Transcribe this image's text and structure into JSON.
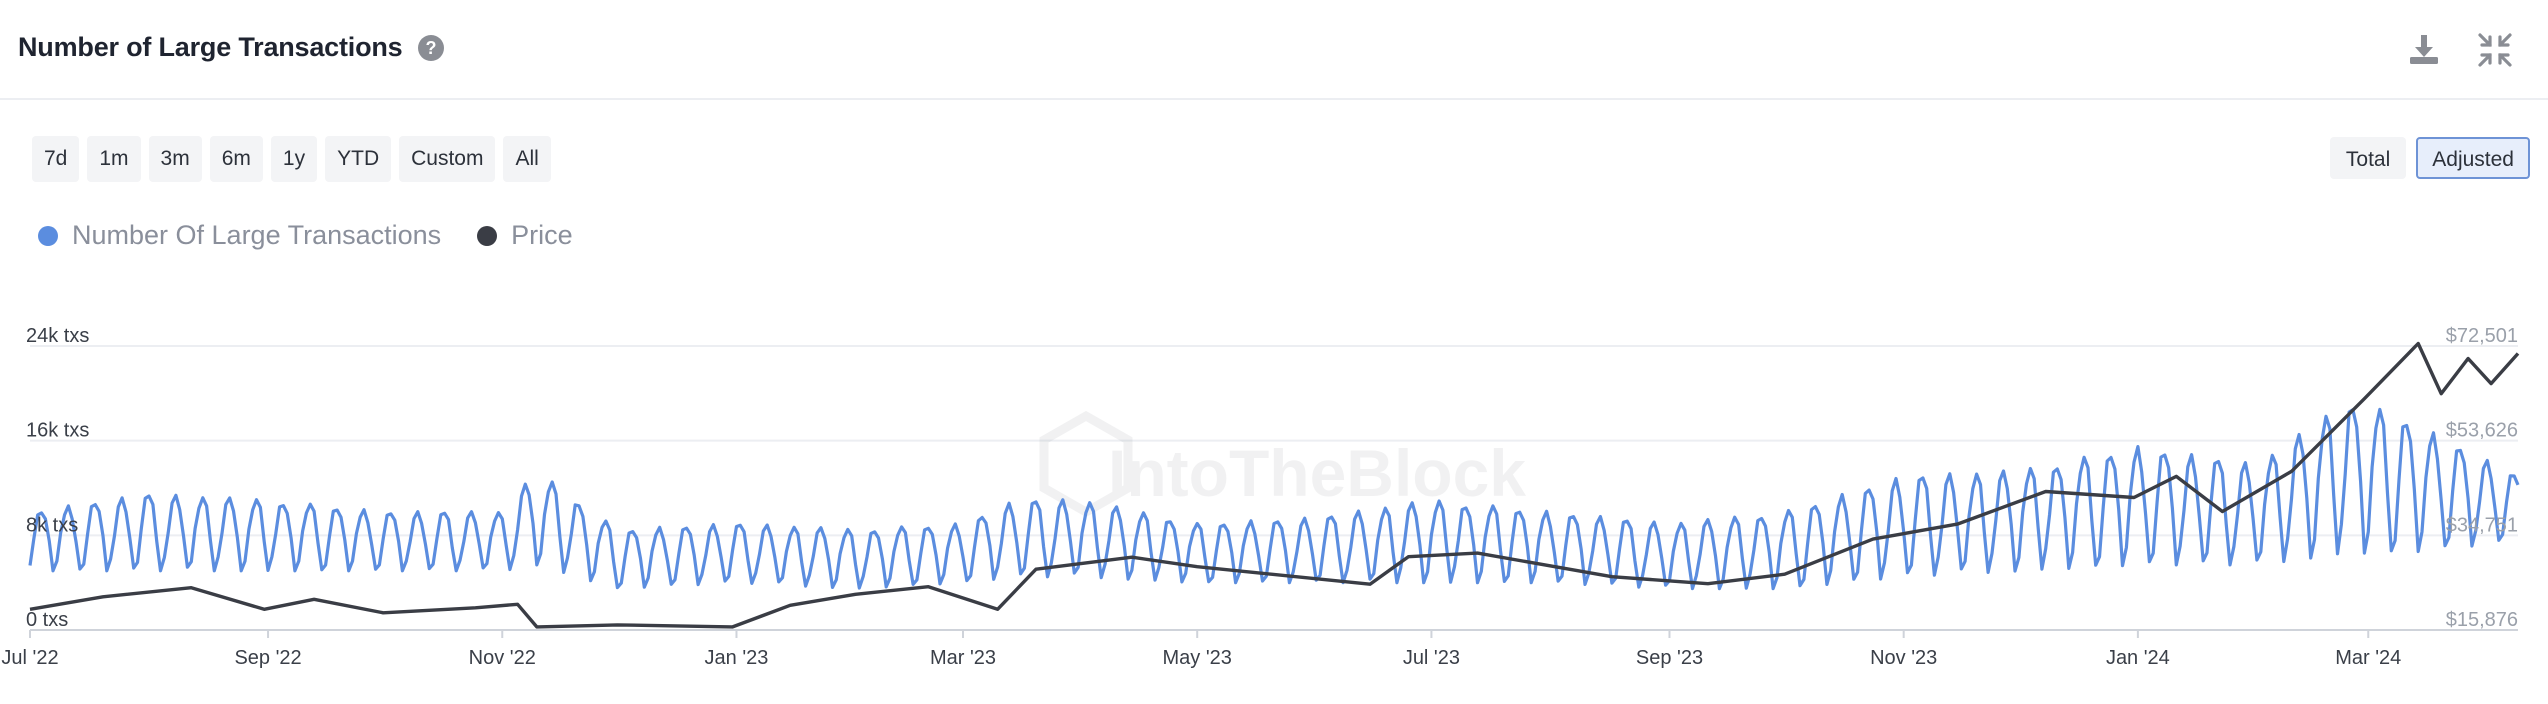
{
  "header": {
    "title": "Number of Large Transactions",
    "help_icon": "question-circle-icon",
    "download_icon": "download-icon",
    "collapse_icon": "collapse-arrows-icon"
  },
  "range_buttons": [
    "7d",
    "1m",
    "3m",
    "6m",
    "1y",
    "YTD",
    "Custom",
    "All"
  ],
  "mode_buttons": [
    {
      "label": "Total",
      "active": false
    },
    {
      "label": "Adjusted",
      "active": true
    }
  ],
  "legend": [
    {
      "label": "Number Of Large Transactions",
      "color": "#5b8ddf"
    },
    {
      "label": "Price",
      "color": "#3a3d45"
    }
  ],
  "watermark": "IntoTheBlock",
  "colors": {
    "tx": "#5b8ddf",
    "price": "#3a3d45",
    "grid": "#eceef2",
    "axis_text": "#9aa0aa"
  },
  "chart_data": {
    "type": "line",
    "x_range": [
      "2022-07-01",
      "2024-04-09"
    ],
    "x_ticks": [
      {
        "date": "2022-07-01",
        "label": "Jul '22"
      },
      {
        "date": "2022-09-01",
        "label": "Sep '22"
      },
      {
        "date": "2022-11-01",
        "label": "Nov '22"
      },
      {
        "date": "2023-01-01",
        "label": "Jan '23"
      },
      {
        "date": "2023-03-01",
        "label": "Mar '23"
      },
      {
        "date": "2023-05-01",
        "label": "May '23"
      },
      {
        "date": "2023-07-01",
        "label": "Jul '23"
      },
      {
        "date": "2023-09-01",
        "label": "Sep '23"
      },
      {
        "date": "2023-11-01",
        "label": "Nov '23"
      },
      {
        "date": "2024-01-01",
        "label": "Jan '24"
      },
      {
        "date": "2024-03-01",
        "label": "Mar '24"
      }
    ],
    "y_left": {
      "min": 0,
      "max": 24000,
      "ticks": [
        {
          "value": 0,
          "label": "0 txs"
        },
        {
          "value": 8000,
          "label": "8k txs"
        },
        {
          "value": 16000,
          "label": "16k txs"
        },
        {
          "value": 24000,
          "label": "24k txs"
        }
      ]
    },
    "y_right": {
      "min": 15876,
      "max": 72501,
      "ticks": [
        {
          "value": 15876,
          "label": "$15,876"
        },
        {
          "value": 34751,
          "label": "$34,751"
        },
        {
          "value": 53626,
          "label": "$53,626"
        },
        {
          "value": 72501,
          "label": "$72,501"
        }
      ]
    },
    "grid": true,
    "series": [
      {
        "name": "Number Of Large Transactions",
        "axis": "left",
        "color": "#5b8ddf",
        "weekly": [
          {
            "date": "2022-07-01",
            "high": 10000,
            "low": 5000
          },
          {
            "date": "2022-08-01",
            "high": 11500,
            "low": 5000
          },
          {
            "date": "2022-09-01",
            "high": 11000,
            "low": 5000
          },
          {
            "date": "2022-10-01",
            "high": 10000,
            "low": 5000
          },
          {
            "date": "2022-11-01",
            "high": 10000,
            "low": 5000
          },
          {
            "date": "2022-11-10",
            "high": 13500,
            "low": 5500
          },
          {
            "date": "2022-12-01",
            "high": 8500,
            "low": 3500
          },
          {
            "date": "2023-01-01",
            "high": 9000,
            "low": 4000
          },
          {
            "date": "2023-02-01",
            "high": 8500,
            "low": 3500
          },
          {
            "date": "2023-03-01",
            "high": 9000,
            "low": 4000
          },
          {
            "date": "2023-03-15",
            "high": 11000,
            "low": 4500
          },
          {
            "date": "2023-04-01",
            "high": 11000,
            "low": 4500
          },
          {
            "date": "2023-05-01",
            "high": 9000,
            "low": 4000
          },
          {
            "date": "2023-06-01",
            "high": 9500,
            "low": 4000
          },
          {
            "date": "2023-07-01",
            "high": 11000,
            "low": 4000
          },
          {
            "date": "2023-08-01",
            "high": 10000,
            "low": 4000
          },
          {
            "date": "2023-09-01",
            "high": 9000,
            "low": 3500
          },
          {
            "date": "2023-10-01",
            "high": 10000,
            "low": 3500
          },
          {
            "date": "2023-11-01",
            "high": 13000,
            "low": 4500
          },
          {
            "date": "2023-12-01",
            "high": 13500,
            "low": 5000
          },
          {
            "date": "2024-01-01",
            "high": 15500,
            "low": 5500
          },
          {
            "date": "2024-02-01",
            "high": 14000,
            "low": 5500
          },
          {
            "date": "2024-02-25",
            "high": 19500,
            "low": 6500
          },
          {
            "date": "2024-03-10",
            "high": 18000,
            "low": 6500
          },
          {
            "date": "2024-04-09",
            "high": 13000,
            "low": 7500
          }
        ]
      },
      {
        "name": "Price",
        "axis": "right",
        "color": "#3a3d45",
        "points": [
          {
            "date": "2022-07-01",
            "value": 20000
          },
          {
            "date": "2022-07-20",
            "value": 22500
          },
          {
            "date": "2022-08-12",
            "value": 24300
          },
          {
            "date": "2022-08-31",
            "value": 20000
          },
          {
            "date": "2022-09-13",
            "value": 22000
          },
          {
            "date": "2022-10-01",
            "value": 19300
          },
          {
            "date": "2022-10-25",
            "value": 20300
          },
          {
            "date": "2022-11-05",
            "value": 21000
          },
          {
            "date": "2022-11-10",
            "value": 16500
          },
          {
            "date": "2022-12-01",
            "value": 16900
          },
          {
            "date": "2022-12-31",
            "value": 16500
          },
          {
            "date": "2023-01-15",
            "value": 20800
          },
          {
            "date": "2023-02-01",
            "value": 23000
          },
          {
            "date": "2023-02-20",
            "value": 24500
          },
          {
            "date": "2023-03-10",
            "value": 20000
          },
          {
            "date": "2023-03-20",
            "value": 28000
          },
          {
            "date": "2023-04-14",
            "value": 30400
          },
          {
            "date": "2023-05-01",
            "value": 28500
          },
          {
            "date": "2023-06-15",
            "value": 25000
          },
          {
            "date": "2023-06-25",
            "value": 30500
          },
          {
            "date": "2023-07-13",
            "value": 31200
          },
          {
            "date": "2023-08-17",
            "value": 26500
          },
          {
            "date": "2023-09-11",
            "value": 25100
          },
          {
            "date": "2023-10-01",
            "value": 27000
          },
          {
            "date": "2023-10-24",
            "value": 34000
          },
          {
            "date": "2023-11-15",
            "value": 37000
          },
          {
            "date": "2023-12-08",
            "value": 43500
          },
          {
            "date": "2023-12-31",
            "value": 42300
          },
          {
            "date": "2024-01-11",
            "value": 46500
          },
          {
            "date": "2024-01-23",
            "value": 39500
          },
          {
            "date": "2024-02-10",
            "value": 47500
          },
          {
            "date": "2024-02-29",
            "value": 62000
          },
          {
            "date": "2024-03-14",
            "value": 73000
          },
          {
            "date": "2024-03-20",
            "value": 63000
          },
          {
            "date": "2024-03-27",
            "value": 70000
          },
          {
            "date": "2024-04-02",
            "value": 65000
          },
          {
            "date": "2024-04-09",
            "value": 71000
          }
        ]
      }
    ]
  }
}
